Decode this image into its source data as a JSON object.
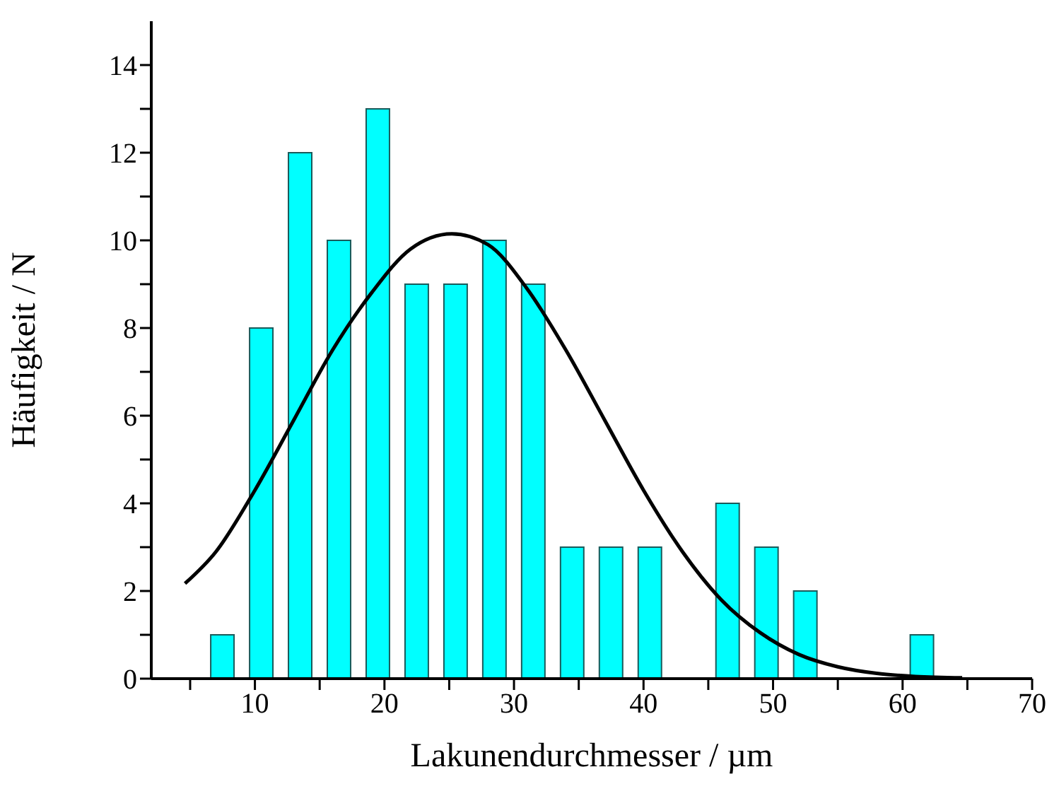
{
  "chart_data": {
    "type": "histogram",
    "xlabel": "Lakunendurchmesser / µm",
    "ylabel": "Häufigkeit / N",
    "xlim": [
      2,
      70
    ],
    "xticks": [
      {
        "value": 5,
        "label": null
      },
      10,
      {
        "value": 15,
        "label": null
      },
      20,
      {
        "value": 25,
        "label": null
      },
      30,
      {
        "value": 35,
        "label": null
      },
      40,
      {
        "value": 45,
        "label": null
      },
      50,
      {
        "value": 55,
        "label": null
      },
      60,
      {
        "value": 65,
        "label": null
      },
      70
    ],
    "ylim": [
      0,
      15
    ],
    "yticks": [
      0,
      {
        "value": 1,
        "label": null
      },
      2,
      {
        "value": 3,
        "label": null
      },
      4,
      {
        "value": 5,
        "label": null
      },
      6,
      {
        "value": 7,
        "label": null
      },
      8,
      {
        "value": 9,
        "label": null
      },
      10,
      {
        "value": 11,
        "label": null
      },
      12,
      {
        "value": 13,
        "label": null
      },
      14
    ],
    "series": [
      {
        "color": "#00ffff",
        "bins": [
          6,
          9,
          12,
          15,
          18,
          21,
          24,
          27,
          30,
          33,
          36,
          39,
          42,
          45,
          48,
          51,
          54,
          57,
          60,
          63
        ],
        "values": [
          1,
          8,
          12,
          10,
          13,
          9,
          9,
          10,
          9,
          3,
          3,
          3,
          0,
          4,
          3,
          2,
          0,
          0,
          1
        ]
      },
      {
        "type": "line",
        "color": "#000000",
        "marker": "none",
        "x": [
          4.6,
          7,
          10,
          13,
          16,
          19,
          22,
          25.2,
          28,
          31,
          34,
          37,
          40,
          43,
          46,
          49,
          52,
          55,
          58,
          61,
          64.6
        ],
        "values": [
          2.17,
          2.9,
          4.3,
          5.9,
          7.5,
          8.8,
          9.8,
          10.15,
          9.9,
          8.9,
          7.5,
          5.9,
          4.3,
          2.9,
          1.8,
          1.05,
          0.55,
          0.27,
          0.12,
          0.05,
          0.02
        ]
      }
    ]
  }
}
